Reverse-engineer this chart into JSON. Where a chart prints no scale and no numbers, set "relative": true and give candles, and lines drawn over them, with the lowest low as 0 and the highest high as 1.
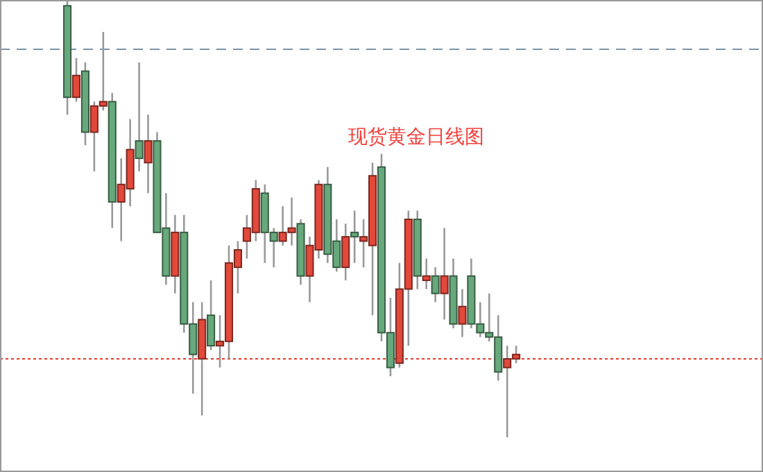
{
  "chart_data": {
    "type": "candlestick",
    "title": "现货黄金日线图",
    "relative": true,
    "categories": [
      null,
      null,
      null,
      null,
      null,
      null,
      null,
      null,
      null,
      null,
      null,
      null,
      null,
      null,
      null,
      null,
      null,
      null,
      null,
      null,
      null,
      null,
      null,
      null,
      null,
      null,
      null,
      null,
      null,
      null,
      null,
      null,
      null,
      null,
      null,
      null,
      null,
      null,
      null,
      null,
      null,
      null,
      null,
      null,
      null,
      null,
      null,
      null,
      null,
      null,
      null,
      null,
      null,
      null,
      null,
      null,
      null,
      null,
      null,
      null,
      null,
      null,
      null,
      null,
      null,
      null,
      null,
      null,
      null,
      null,
      null,
      null,
      null,
      null,
      null,
      null,
      null,
      null,
      null,
      null,
      null,
      null,
      null,
      null,
      null
    ],
    "ohlc": [
      null,
      null,
      null,
      null,
      null,
      null,
      null,
      [
        0.99,
        1.0,
        0.74,
        0.78
      ],
      [
        0.78,
        0.87,
        0.77,
        0.83
      ],
      [
        0.84,
        0.86,
        0.67,
        0.7
      ],
      [
        0.7,
        0.77,
        0.61,
        0.76
      ],
      [
        0.76,
        0.93,
        0.75,
        0.77
      ],
      [
        0.77,
        0.79,
        0.48,
        0.54
      ],
      [
        0.54,
        0.64,
        0.45,
        0.58
      ],
      [
        0.57,
        0.73,
        0.53,
        0.66
      ],
      [
        0.68,
        0.86,
        0.61,
        0.64
      ],
      [
        0.63,
        0.74,
        0.56,
        0.68
      ],
      [
        0.68,
        0.7,
        0.47,
        0.47
      ],
      [
        0.48,
        0.56,
        0.35,
        0.37
      ],
      [
        0.37,
        0.51,
        0.33,
        0.47
      ],
      [
        0.47,
        0.51,
        0.24,
        0.26
      ],
      [
        0.26,
        0.31,
        0.1,
        0.19
      ],
      [
        0.18,
        0.31,
        0.05,
        0.27
      ],
      [
        0.28,
        0.36,
        0.2,
        0.21
      ],
      [
        0.21,
        0.28,
        0.16,
        0.22
      ],
      [
        0.22,
        0.44,
        0.18,
        0.4
      ],
      [
        0.39,
        0.45,
        0.33,
        0.43
      ],
      [
        0.45,
        0.51,
        0.41,
        0.48
      ],
      [
        0.47,
        0.59,
        0.45,
        0.57
      ],
      [
        0.56,
        0.58,
        0.4,
        0.47
      ],
      [
        0.47,
        0.48,
        0.39,
        0.45
      ],
      [
        0.45,
        0.53,
        0.44,
        0.47
      ],
      [
        0.47,
        0.55,
        0.44,
        0.48
      ],
      [
        0.49,
        0.5,
        0.35,
        0.37
      ],
      [
        0.37,
        0.46,
        0.31,
        0.44
      ],
      [
        0.43,
        0.59,
        0.41,
        0.58
      ],
      [
        0.58,
        0.62,
        0.4,
        0.42
      ],
      [
        0.45,
        0.5,
        0.38,
        0.39
      ],
      [
        0.39,
        0.49,
        0.36,
        0.46
      ],
      [
        0.47,
        0.52,
        0.4,
        0.46
      ],
      [
        0.45,
        0.5,
        0.39,
        0.46
      ],
      [
        0.44,
        0.63,
        0.28,
        0.6
      ],
      [
        0.62,
        0.65,
        0.22,
        0.24
      ],
      [
        0.24,
        0.32,
        0.14,
        0.16
      ],
      [
        0.17,
        0.4,
        0.16,
        0.34
      ],
      [
        0.34,
        0.52,
        0.21,
        0.5
      ],
      [
        0.5,
        0.52,
        0.34,
        0.37
      ],
      [
        0.36,
        0.41,
        0.34,
        0.37
      ],
      [
        0.37,
        0.39,
        0.31,
        0.33
      ],
      [
        0.33,
        0.48,
        0.27,
        0.37
      ],
      [
        0.37,
        0.41,
        0.25,
        0.26
      ],
      [
        0.26,
        0.34,
        0.23,
        0.3
      ],
      [
        0.37,
        0.41,
        0.25,
        0.26
      ],
      [
        0.26,
        0.31,
        0.23,
        0.24
      ],
      [
        0.24,
        0.33,
        0.22,
        0.23
      ],
      [
        0.23,
        0.28,
        0.13,
        0.15
      ],
      [
        0.16,
        0.21,
        0.0,
        0.18
      ],
      [
        0.18,
        0.21,
        0.17,
        0.19
      ],
      null,
      null,
      null,
      null,
      null,
      null,
      null,
      null,
      null,
      null,
      null,
      null,
      null,
      null,
      null,
      null,
      null,
      null,
      null,
      null,
      null,
      null,
      null,
      null,
      null,
      null,
      null
    ],
    "colors": [
      null,
      null,
      null,
      null,
      null,
      null,
      null,
      "#67a97c",
      "#e2493a",
      "#67a97c",
      "#e2493a",
      "#e2493a",
      "#67a97c",
      "#e2493a",
      "#e2493a",
      "#67a97c",
      "#e2493a",
      "#67a97c",
      "#67a97c",
      "#e2493a",
      "#67a97c",
      "#67a97c",
      "#e2493a",
      "#67a97c",
      "#e2493a",
      "#e2493a",
      "#e2493a",
      "#e2493a",
      "#e2493a",
      "#67a97c",
      "#67a97c",
      "#e2493a",
      "#e2493a",
      "#67a97c",
      "#e2493a",
      "#e2493a",
      "#67a97c",
      "#67a97c",
      "#e2493a",
      "#67a97c",
      "#e2493a",
      "#e2493a",
      "#67a97c",
      "#67a97c",
      "#e2493a",
      "#e2493a",
      "#67a97c",
      "#e2493a",
      "#67a97c",
      "#e2493a",
      "#67a97c",
      "#e2493a",
      "#67a97c",
      "#67a97c",
      "#67a97c",
      "#67a97c",
      "#e2493a",
      "#e2493a",
      null,
      null,
      null,
      null,
      null,
      null,
      null,
      null,
      null,
      null,
      null,
      null,
      null,
      null,
      null,
      null,
      null,
      null,
      null,
      null,
      null,
      null,
      null,
      null,
      null,
      null,
      null
    ],
    "ref_lines": [
      {
        "axis": "y",
        "value": 0.89,
        "color": "#7f93a8",
        "line_style": "dashed"
      },
      {
        "axis": "y",
        "value": 0.18,
        "color": "#e8382c",
        "line_style": "dotted"
      }
    ]
  }
}
